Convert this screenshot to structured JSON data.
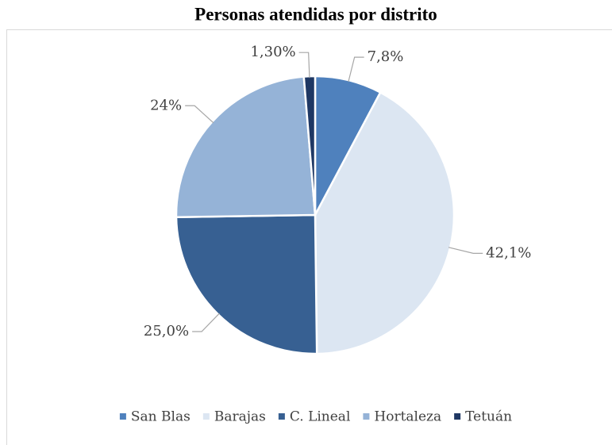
{
  "chart_data": {
    "type": "pie",
    "title": "Personas atendidas por distrito",
    "categories": [
      "San Blas",
      "Barajas",
      "C. Lineal",
      "Hortaleza",
      "Tetuán"
    ],
    "values": [
      7.8,
      42.1,
      25.0,
      24,
      1.3
    ],
    "value_labels": [
      "7,8%",
      "42,1%",
      "25,0%",
      "24%",
      "1,30%"
    ],
    "colors": [
      "#4f81bd",
      "#dce6f2",
      "#376092",
      "#95b3d7",
      "#1f3864"
    ],
    "legend": "bottom"
  }
}
